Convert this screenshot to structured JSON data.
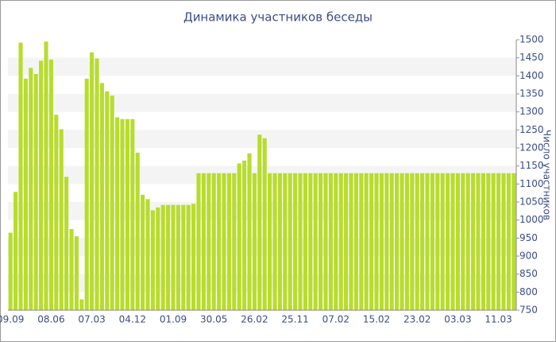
{
  "chart_data": {
    "type": "bar",
    "title": "Динамика участников беседы",
    "y_label": "Число участников",
    "categories": [
      "09.09",
      null,
      null,
      null,
      null,
      null,
      null,
      null,
      "08.06",
      null,
      null,
      null,
      null,
      null,
      null,
      null,
      "07.03",
      null,
      null,
      null,
      null,
      null,
      null,
      null,
      "04.12",
      null,
      null,
      null,
      null,
      null,
      null,
      null,
      "01.09",
      null,
      null,
      null,
      null,
      null,
      null,
      null,
      "30.05",
      null,
      null,
      null,
      null,
      null,
      null,
      null,
      "26.02",
      null,
      null,
      null,
      null,
      null,
      null,
      null,
      "25.11",
      null,
      null,
      null,
      null,
      null,
      null,
      null,
      "07.02",
      null,
      null,
      null,
      null,
      null,
      null,
      null,
      "15.02",
      null,
      null,
      null,
      null,
      null,
      null,
      null,
      "23.02",
      null,
      null,
      null,
      null,
      null,
      null,
      null,
      "03.03",
      null,
      null,
      null,
      null,
      null,
      null,
      null,
      "11.03",
      null,
      null,
      null
    ],
    "values": [
      965,
      1078,
      1492,
      1392,
      1422,
      1405,
      1442,
      1495,
      1445,
      1292,
      1252,
      1120,
      975,
      955,
      780,
      1392,
      1465,
      1448,
      1380,
      1357,
      1345,
      1285,
      1280,
      1280,
      1280,
      1187,
      1070,
      1058,
      1027,
      1035,
      1042,
      1042,
      1042,
      1042,
      1042,
      1042,
      1045,
      1130,
      1130,
      1130,
      1130,
      1130,
      1130,
      1130,
      1130,
      1157,
      1165,
      1185,
      1130,
      1237,
      1227,
      1130,
      1130,
      1130,
      1130,
      1130,
      1130,
      1130,
      1130,
      1130,
      1130,
      1130,
      1130,
      1130,
      1130,
      1130,
      1130,
      1130,
      1130,
      1130,
      1130,
      1130,
      1130,
      1130,
      1130,
      1130,
      1130,
      1130,
      1130,
      1130,
      1130,
      1130,
      1130,
      1130,
      1130,
      1130,
      1130,
      1130,
      1130,
      1130,
      1130,
      1130,
      1130,
      1130,
      1130,
      1130,
      1130,
      1130,
      1130,
      1130
    ],
    "color": "#b8dc2e",
    "ylim": [
      750,
      1500
    ],
    "yticks": [
      750,
      800,
      850,
      900,
      950,
      1000,
      1050,
      1100,
      1150,
      1200,
      1250,
      1300,
      1350,
      1400,
      1450,
      1500
    ],
    "grid": "bands",
    "y_axis_side": "right"
  }
}
